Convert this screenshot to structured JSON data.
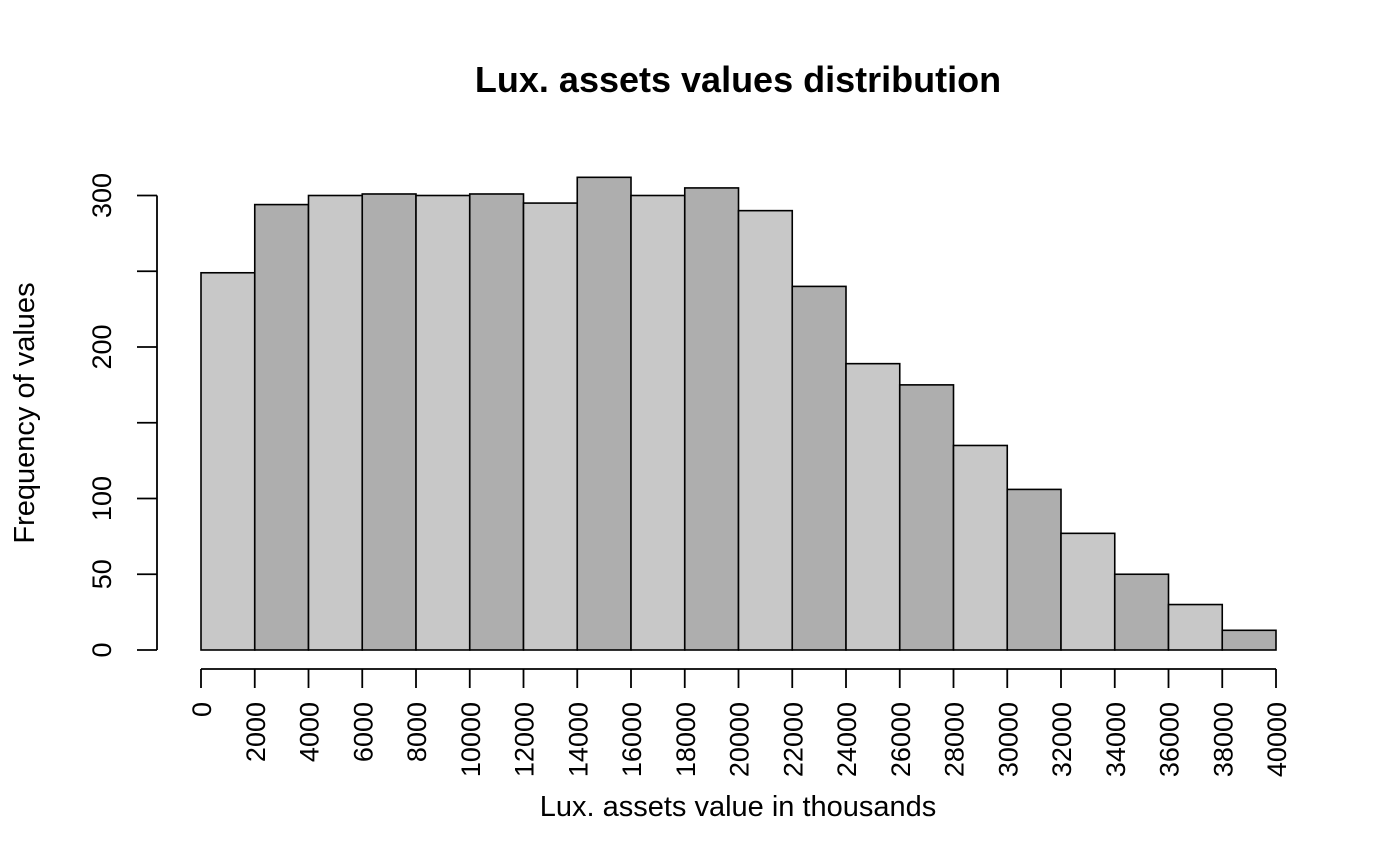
{
  "chart_data": {
    "type": "bar",
    "title": "Lux. assets values distribution",
    "xlabel": "Lux. assets value in thousands",
    "ylabel": "Frequency of values",
    "bin_edges": [
      0,
      2000,
      4000,
      6000,
      8000,
      10000,
      12000,
      14000,
      16000,
      18000,
      20000,
      22000,
      24000,
      26000,
      28000,
      30000,
      32000,
      34000,
      36000,
      38000,
      40000
    ],
    "values": [
      249,
      294,
      300,
      301,
      300,
      301,
      295,
      312,
      300,
      305,
      290,
      240,
      189,
      175,
      135,
      106,
      77,
      50,
      30,
      13
    ],
    "xlim": [
      0,
      40000
    ],
    "ylim": [
      0,
      312
    ],
    "x_ticks": [
      "0",
      "2000",
      "4000",
      "6000",
      "8000",
      "10000",
      "12000",
      "14000",
      "16000",
      "18000",
      "20000",
      "22000",
      "24000",
      "26000",
      "28000",
      "30000",
      "32000",
      "34000",
      "36000",
      "38000",
      "40000"
    ],
    "y_ticks": [
      0,
      50,
      100,
      150,
      200,
      250,
      300
    ],
    "y_tick_labels": [
      "0",
      "50",
      "100",
      "",
      "200",
      "",
      "300"
    ],
    "bar_colors": [
      "#c8c8c8",
      "#aeaeae"
    ],
    "grid": false,
    "legend": "none"
  }
}
